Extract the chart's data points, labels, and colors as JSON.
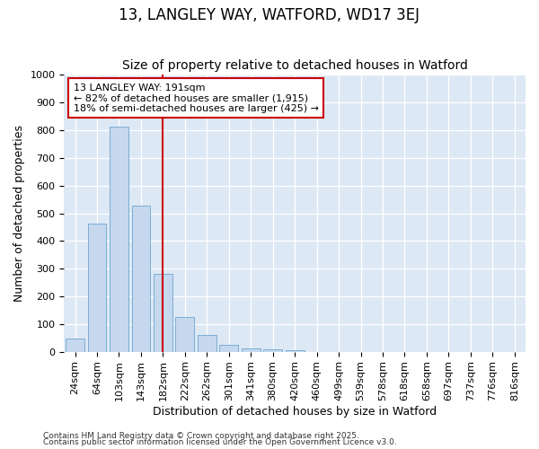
{
  "title": "13, LANGLEY WAY, WATFORD, WD17 3EJ",
  "subtitle": "Size of property relative to detached houses in Watford",
  "xlabel": "Distribution of detached houses by size in Watford",
  "ylabel": "Number of detached properties",
  "categories": [
    "24sqm",
    "64sqm",
    "103sqm",
    "143sqm",
    "182sqm",
    "222sqm",
    "262sqm",
    "301sqm",
    "341sqm",
    "380sqm",
    "420sqm",
    "460sqm",
    "499sqm",
    "539sqm",
    "578sqm",
    "618sqm",
    "658sqm",
    "697sqm",
    "737sqm",
    "776sqm",
    "816sqm"
  ],
  "values": [
    47,
    463,
    814,
    527,
    280,
    126,
    59,
    25,
    11,
    10,
    5,
    0,
    0,
    0,
    0,
    0,
    0,
    0,
    0,
    0,
    0
  ],
  "bar_color": "#c5d8ee",
  "bar_edge_color": "#7aadd4",
  "vline_x_index": 4,
  "vline_color": "#cc0000",
  "ylim": [
    0,
    1000
  ],
  "yticks": [
    0,
    100,
    200,
    300,
    400,
    500,
    600,
    700,
    800,
    900,
    1000
  ],
  "annotation_line1": "13 LANGLEY WAY: 191sqm",
  "annotation_line2": "← 82% of detached houses are smaller (1,915)",
  "annotation_line3": "18% of semi-detached houses are larger (425) →",
  "annotation_box_color": "#ffffff",
  "annotation_box_edge_color": "#cc0000",
  "plot_bg_color": "#dde8f5",
  "fig_bg_color": "#ffffff",
  "footer_line1": "Contains HM Land Registry data © Crown copyright and database right 2025.",
  "footer_line2": "Contains public sector information licensed under the Open Government Licence v3.0.",
  "title_fontsize": 12,
  "subtitle_fontsize": 10,
  "xlabel_fontsize": 9,
  "ylabel_fontsize": 9,
  "tick_fontsize": 8,
  "annotation_fontsize": 8,
  "footer_fontsize": 6.5
}
